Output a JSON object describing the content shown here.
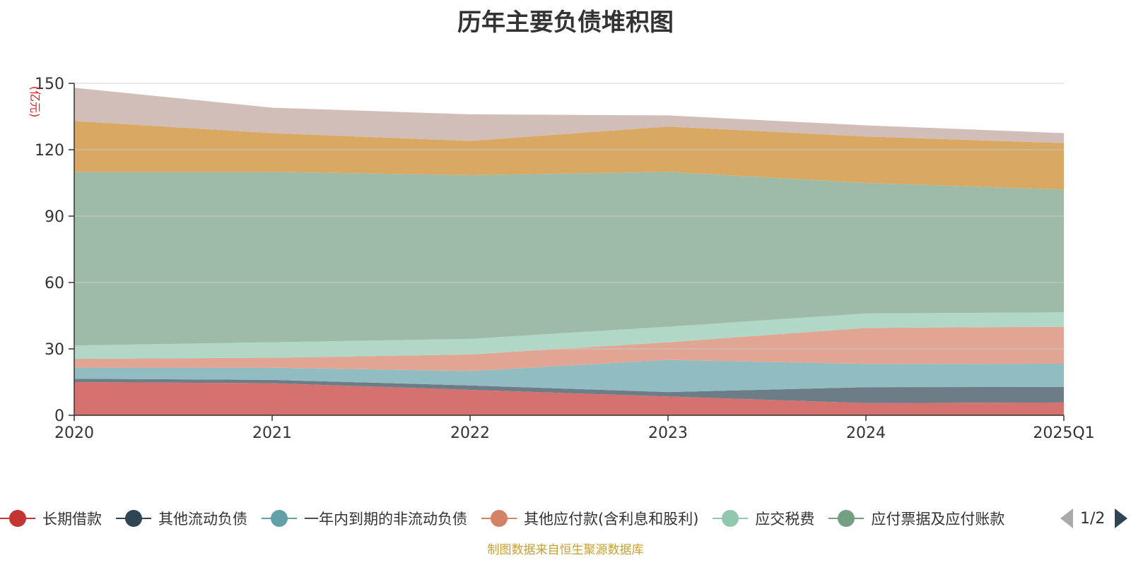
{
  "title": "历年主要负债堆积图",
  "footer": "制图数据来自恒生聚源数据库",
  "pager": {
    "text": "1/2"
  },
  "colors": {
    "grid": "#cccccc",
    "axis": "#333333",
    "unit": "#e02020"
  },
  "chart_data": {
    "type": "area",
    "stacked": true,
    "title": "历年主要负债堆积图",
    "ylabel": "(亿元)",
    "xlabel": "",
    "x": [
      "2020",
      "2021",
      "2022",
      "2023",
      "2024",
      "2025Q1"
    ],
    "ylim": [
      0,
      150
    ],
    "yticks": [
      0,
      30,
      60,
      90,
      120,
      150
    ],
    "grid": true,
    "legend_position": "bottom",
    "series": [
      {
        "name": "长期借款",
        "color": "#c23531",
        "fill": "#d5726f",
        "values": [
          15.0,
          14.5,
          11.5,
          8.5,
          5.5,
          5.8
        ]
      },
      {
        "name": "其他流动负债",
        "color": "#2f4554",
        "fill": "#6c7d88",
        "values": [
          1.5,
          1.5,
          2.0,
          2.0,
          7.2,
          7.0
        ]
      },
      {
        "name": "一年内到期的非流动负债",
        "color": "#61a0a8",
        "fill": "#90bcc2",
        "values": [
          5.0,
          5.5,
          6.5,
          14.5,
          10.5,
          10.5
        ]
      },
      {
        "name": "其他应付款(含利息和股利)",
        "color": "#d48265",
        "fill": "#e1a693",
        "values": [
          4.0,
          4.5,
          7.5,
          8.0,
          16.3,
          16.7
        ]
      },
      {
        "name": "应交税费",
        "color": "#91c7ae",
        "fill": "#b1d8c6",
        "values": [
          6.0,
          7.0,
          7.0,
          7.0,
          6.5,
          6.5
        ]
      },
      {
        "name": "应付票据及应付账款",
        "color": "#749f83",
        "fill": "#9ebba8",
        "values": [
          78.5,
          77.0,
          74.0,
          70.0,
          59.0,
          55.5
        ]
      },
      {
        "name": "",
        "color": "#ca8622",
        "fill": "#d9a964",
        "values": [
          23.0,
          17.5,
          15.5,
          20.5,
          21.0,
          21.0
        ]
      },
      {
        "name": "",
        "color": "#bda29a",
        "fill": "#d2beb8",
        "values": [
          15.0,
          11.5,
          12.0,
          5.0,
          5.0,
          4.5
        ]
      }
    ]
  }
}
